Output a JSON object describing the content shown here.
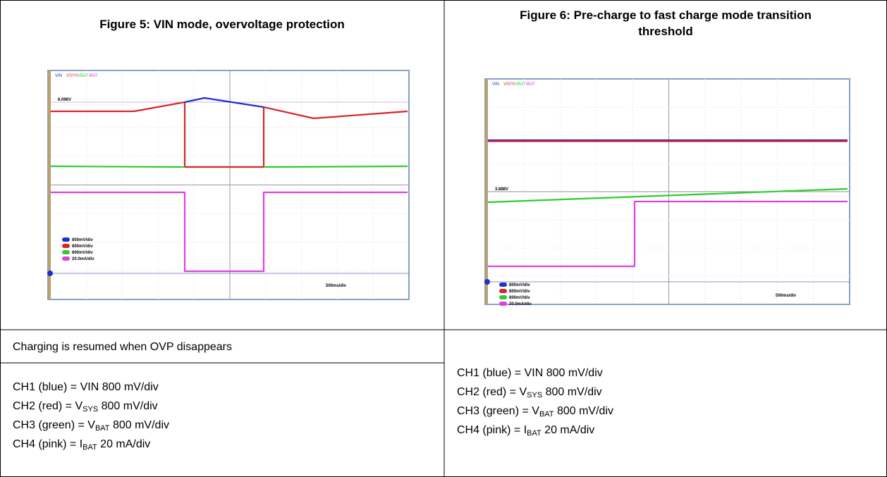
{
  "figures": [
    {
      "title": [
        "Figure 5: VIN mode, overvoltage protection"
      ],
      "scope": {
        "channels": [
          "VIN",
          "VSYS",
          "VBAT",
          "IBAT"
        ],
        "marker": "6.096V",
        "scales": [
          "800mV/div",
          "800mV/div",
          "800mV/div",
          "20.0mA/div"
        ],
        "timebase": "500ms/div"
      },
      "note": "Charging is resumed when OVP disappears",
      "legend": [
        {
          "pre": "CH1 (blue) = VIN 800 mV/div"
        },
        {
          "pre": "CH2 (red) = V",
          "sub": "SYS",
          "post": " 800 mV/div"
        },
        {
          "pre": "CH3 (green) = V",
          "sub": "BAT",
          "post": " 800 mV/div"
        },
        {
          "pre": "CH4 (pink) = I",
          "sub": "BAT",
          "post": " 20 mA/div"
        }
      ]
    },
    {
      "title": [
        "Figure 6: Pre-charge to fast charge mode transition",
        "threshold"
      ],
      "scope": {
        "channels": [
          "VIN",
          "VSYS",
          "VBAT",
          "IBAT"
        ],
        "marker": "3.888V",
        "scales": [
          "800mV/div",
          "800mV/div",
          "800mV/div",
          "20.0mA/div"
        ],
        "timebase": "500ms/div"
      },
      "legend": [
        {
          "pre": "CH1 (blue) = VIN 800 mV/div"
        },
        {
          "pre": "CH2 (red) = V",
          "sub": "SYS",
          "post": " 800 mV/div"
        },
        {
          "pre": "CH3 (green) = V",
          "sub": "BAT",
          "post": " 800 mV/div"
        },
        {
          "pre": "CH4 (pink) = I",
          "sub": "BAT",
          "post": " 20 mA/div"
        }
      ]
    }
  ]
}
